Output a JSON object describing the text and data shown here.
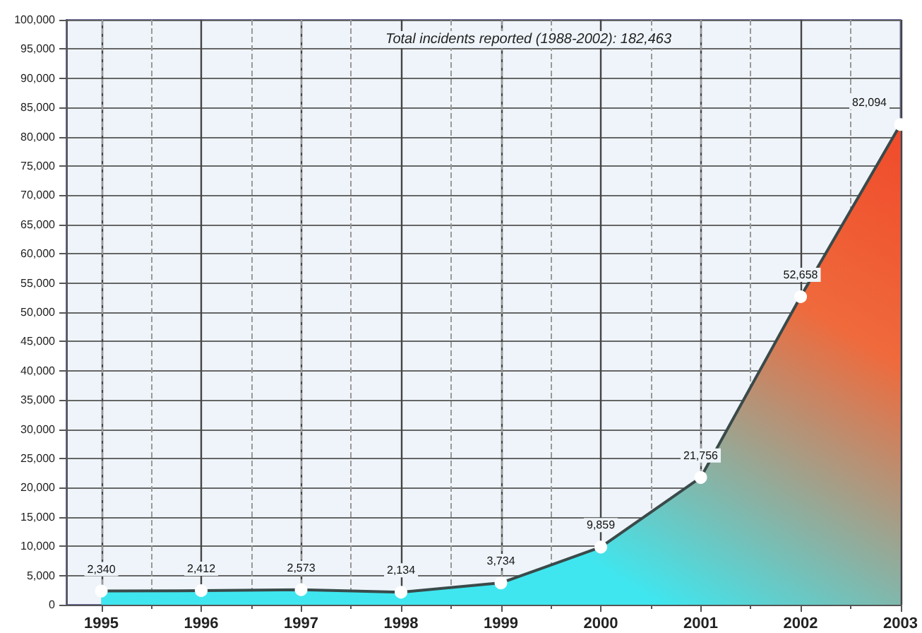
{
  "chart_data": {
    "type": "area",
    "title": "Total incidents reported (1988-2002): 182,463",
    "x": [
      1995,
      1996,
      1997,
      1998,
      1999,
      2000,
      2001,
      2002,
      2003
    ],
    "series": [
      {
        "color": "#3fe6ef",
        "values": [
          2340,
          2412,
          2573,
          2134,
          3734,
          9859,
          21756,
          52658,
          82094
        ],
        "value_labels": [
          "2,340",
          "2,412",
          "2,573",
          "2,134",
          "3,734",
          "9,859",
          "21,756",
          "52,658",
          "82,094"
        ]
      }
    ],
    "xlim": [
      1994.65,
      2003
    ],
    "xticks": [
      1995,
      1996,
      1997,
      1998,
      1999,
      2000,
      2001,
      2002,
      2003
    ],
    "ylim": [
      0,
      100000
    ],
    "yticks": [
      0,
      {
        "value": 5000,
        "label": "5,000"
      },
      {
        "value": 10000,
        "label": "10,000"
      },
      {
        "value": 15000,
        "label": "15,000"
      },
      {
        "value": 20000,
        "label": "20,000"
      },
      {
        "value": 25000,
        "label": "25,000"
      },
      {
        "value": 30000,
        "label": "30,000"
      },
      {
        "value": 35000,
        "label": "35,000"
      },
      {
        "value": 40000,
        "label": "40,000"
      },
      {
        "value": 45000,
        "label": "45,000"
      },
      {
        "value": 50000,
        "label": "50,000"
      },
      {
        "value": 55000,
        "label": "55,000"
      },
      {
        "value": 60000,
        "label": "60,000"
      },
      {
        "value": 65000,
        "label": "65,000"
      },
      {
        "value": 70000,
        "label": "70,000"
      },
      {
        "value": 75000,
        "label": "75,000"
      },
      {
        "value": 80000,
        "label": "80,000"
      },
      {
        "value": 85000,
        "label": "85,000"
      },
      {
        "value": 90000,
        "label": "90,000"
      },
      {
        "value": 95000,
        "label": "95,000"
      },
      {
        "value": 100000,
        "label": "100,000"
      }
    ],
    "grid": true,
    "marker": "circle",
    "line_style": "solid"
  }
}
